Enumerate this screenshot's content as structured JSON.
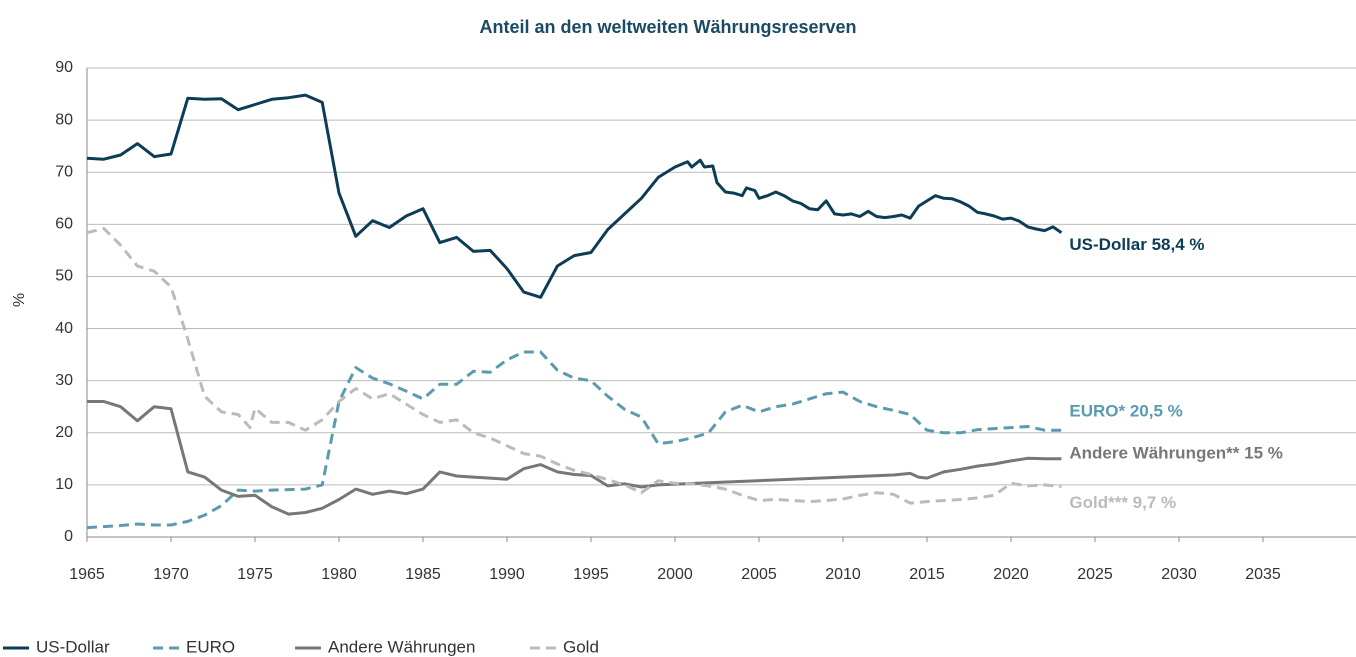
{
  "chart_data": {
    "type": "line",
    "title": "Anteil an den weltweiten Währungsreserven",
    "ylabel": "%",
    "xlim": [
      1965,
      2040
    ],
    "xticks": [
      1965,
      1970,
      1975,
      1980,
      1985,
      1990,
      1995,
      2000,
      2005,
      2010,
      2015,
      2020,
      2025,
      2030,
      2035
    ],
    "ylim": [
      0,
      90
    ],
    "yticks": [
      0,
      10,
      20,
      30,
      40,
      50,
      60,
      70,
      80,
      90
    ],
    "grid": true,
    "legend": "bottom-left",
    "series": [
      {
        "name": "US-Dollar",
        "color": "#0d3d56",
        "line_style": "solid",
        "end_label": "US-Dollar 58,4 %",
        "x": [
          1965,
          1966,
          1967,
          1968,
          1969,
          1970,
          1971,
          1972,
          1973,
          1974,
          1975,
          1976,
          1977,
          1978,
          1979,
          1980,
          1981,
          1982,
          1983,
          1984,
          1985,
          1986,
          1987,
          1988,
          1989,
          1990,
          1991,
          1992,
          1993,
          1994,
          1995,
          1996,
          1997,
          1998,
          1999,
          2000,
          2000.75,
          2001,
          2001.5,
          2001.75,
          2002.25,
          2002.5,
          2003,
          2003.5,
          2004,
          2004.25,
          2004.75,
          2005,
          2005.5,
          2006,
          2006.5,
          2007,
          2007.5,
          2008,
          2008.5,
          2009,
          2009.5,
          2010,
          2010.5,
          2011,
          2011.5,
          2012,
          2012.5,
          2013,
          2013.5,
          2014,
          2014.5,
          2015,
          2015.5,
          2016,
          2016.5,
          2017,
          2017.5,
          2018,
          2018.5,
          2019,
          2019.5,
          2020,
          2020.5,
          2021,
          2021.5,
          2022,
          2022.5,
          2023
        ],
        "values": [
          72.7,
          72.5,
          73.3,
          75.5,
          73,
          73.5,
          84.2,
          84,
          84.1,
          82,
          83,
          84,
          84.3,
          84.8,
          83.4,
          66,
          57.7,
          60.7,
          59.4,
          61.6,
          63,
          56.5,
          57.5,
          54.8,
          55,
          51.5,
          47,
          46,
          52,
          54,
          54.6,
          59,
          62,
          65,
          69,
          71,
          72,
          71,
          72.3,
          71,
          71.2,
          68,
          66.2,
          66,
          65.5,
          67,
          66.5,
          65,
          65.5,
          66.2,
          65.5,
          64.5,
          64,
          63,
          62.8,
          64.5,
          62,
          61.8,
          62,
          61.5,
          62.5,
          61.5,
          61.3,
          61.5,
          61.8,
          61.2,
          63.5,
          64.5,
          65.5,
          65,
          64.9,
          64.3,
          63.5,
          62.3,
          62,
          61.6,
          61,
          61.2,
          60.6,
          59.5,
          59.1,
          58.8,
          59.5,
          58.4
        ]
      },
      {
        "name": "EURO",
        "color": "#5b9bb0",
        "line_style": "dashed",
        "end_label": "EURO* 20,5 %",
        "x": [
          1965,
          1966,
          1967,
          1968,
          1969,
          1970,
          1971,
          1972,
          1973,
          1974,
          1975,
          1976,
          1977,
          1978,
          1979,
          1980,
          1981,
          1982,
          1983,
          1984,
          1985,
          1986,
          1987,
          1988,
          1989,
          1990,
          1991,
          1992,
          1993,
          1994,
          1995,
          1996,
          1997,
          1998,
          1999,
          2000,
          2001,
          2002,
          2003,
          2004,
          2005,
          2006,
          2007,
          2008,
          2009,
          2010,
          2011,
          2012,
          2013,
          2014,
          2015,
          2016,
          2017,
          2018,
          2019,
          2020,
          2021,
          2022,
          2023
        ],
        "values": [
          1.8,
          2,
          2.2,
          2.5,
          2.3,
          2.3,
          3,
          4.2,
          6,
          9,
          8.8,
          9,
          9.1,
          9.2,
          10,
          26,
          32.5,
          30.5,
          29.4,
          28,
          26.5,
          29.3,
          29.3,
          31.8,
          31.6,
          34,
          35.5,
          35.5,
          32,
          30.5,
          30,
          27,
          24.5,
          23,
          17.9,
          18.3,
          19,
          20,
          24,
          25.3,
          24,
          25,
          25.5,
          26.5,
          27.5,
          27.8,
          26,
          25,
          24.3,
          23.5,
          20.5,
          20,
          20,
          20.6,
          20.8,
          21,
          21.2,
          20.5,
          20.5
        ]
      },
      {
        "name": "Andere Währungen",
        "color": "#777777",
        "line_style": "solid",
        "end_label": "Andere Währungen** 15 %",
        "x": [
          1965,
          1966,
          1967,
          1968,
          1969,
          1970,
          1971,
          1972,
          1973,
          1974,
          1975,
          1976,
          1977,
          1978,
          1979,
          1980,
          1981,
          1982,
          1983,
          1984,
          1985,
          1986,
          1987,
          1988,
          1989,
          1990,
          1991,
          1992,
          1993,
          1994,
          1995,
          1996,
          1997,
          1998,
          1999,
          2013,
          2014,
          2014.5,
          2015,
          2016,
          2017,
          2018,
          2019,
          2020,
          2021,
          2022,
          2023
        ],
        "values": [
          26,
          26,
          25,
          22.3,
          25,
          24.6,
          12.5,
          11.5,
          9,
          7.8,
          8,
          5.8,
          4.4,
          4.7,
          5.5,
          7.2,
          9.2,
          8.2,
          8.8,
          8.3,
          9.2,
          12.5,
          11.7,
          11.5,
          11.3,
          11.1,
          13.1,
          13.9,
          12.5,
          12,
          11.8,
          9.8,
          10.2,
          9.6,
          10,
          11.9,
          12.2,
          11.5,
          11.3,
          12.5,
          13,
          13.6,
          14,
          14.6,
          15.1,
          15,
          15
        ]
      },
      {
        "name": "Gold",
        "color": "#bbbbbb",
        "line_style": "dashed",
        "end_label": "Gold*** 9,7 %",
        "x": [
          1965,
          1966,
          1967,
          1968,
          1969,
          1970,
          1971,
          1972,
          1973,
          1974,
          1974.7,
          1975,
          1976,
          1977,
          1978,
          1979,
          1980,
          1981,
          1982,
          1983,
          1984,
          1985,
          1986,
          1987,
          1988,
          1989,
          1990,
          1991,
          1992,
          1993,
          1994,
          1995,
          1996,
          1997,
          1998,
          1999,
          2000,
          2001,
          2002,
          2003,
          2004,
          2005,
          2006,
          2007,
          2008,
          2009,
          2010,
          2011,
          2012,
          2013,
          2014,
          2015,
          2016,
          2017,
          2018,
          2019,
          2020,
          2021,
          2022,
          2023
        ],
        "values": [
          58.4,
          59.2,
          56,
          52,
          51,
          48,
          38,
          27,
          24,
          23.5,
          21,
          24.7,
          22,
          22,
          20.5,
          22.5,
          26,
          28.5,
          26.5,
          27.5,
          25.5,
          23.5,
          22,
          22.5,
          20,
          19,
          17.5,
          16,
          15.5,
          14,
          12.8,
          12,
          11,
          10,
          8.5,
          10.8,
          10.3,
          10.2,
          9.8,
          9.2,
          8,
          7,
          7.2,
          7,
          6.8,
          7,
          7.3,
          8,
          8.5,
          8.2,
          6.5,
          6.8,
          7,
          7.2,
          7.5,
          8,
          10.3,
          9.8,
          10,
          9.7
        ]
      }
    ]
  }
}
